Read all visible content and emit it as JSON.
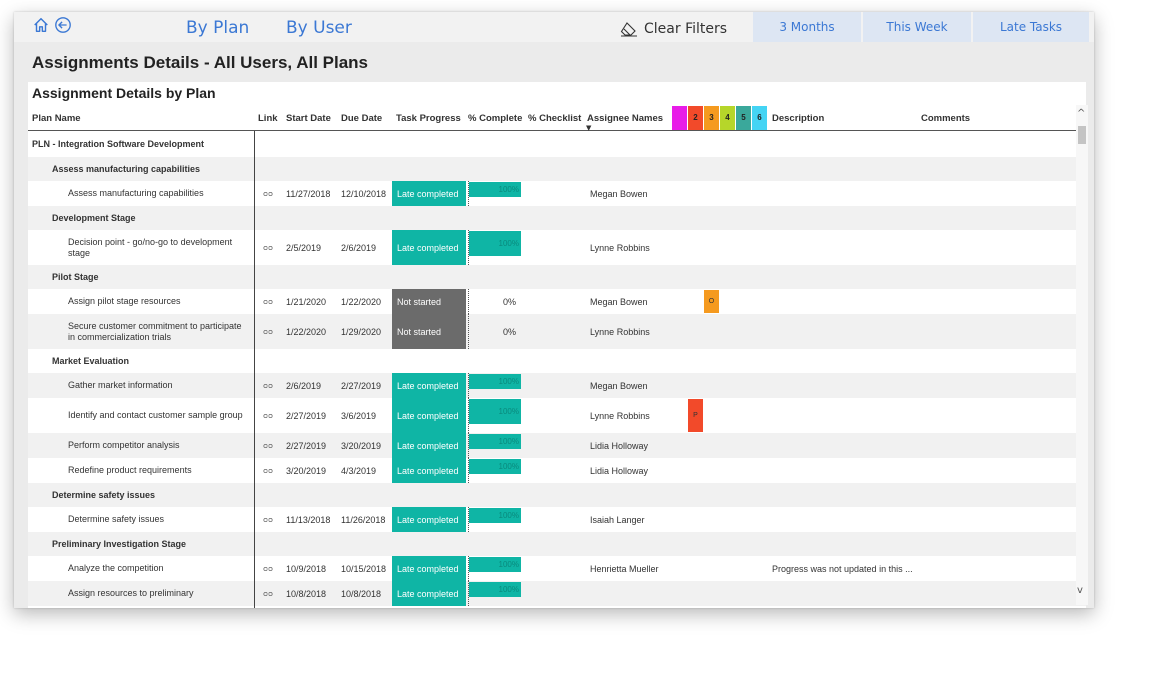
{
  "nav": {
    "by_plan": "By Plan",
    "by_user": "By User",
    "clear_filters": "Clear Filters",
    "segments": [
      "3 Months",
      "This Week",
      "Late Tasks"
    ]
  },
  "page_title": "Assignments Details - All Users, All Plans",
  "panel_title": "Assignment Details by Plan",
  "columns": {
    "plan_name": "Plan Name",
    "link": "Link",
    "start_date": "Start Date",
    "due_date": "Due Date",
    "task_progress": "Task Progress",
    "pct_complete": "% Complete",
    "pct_checklist": "% Checklist",
    "assignee_names": "Assignee Names",
    "description": "Description",
    "comments": "Comments"
  },
  "priority_labels": [
    "1",
    "2",
    "3",
    "4",
    "5",
    "6"
  ],
  "priority_colors": [
    "#e81ce8",
    "#f24a2a",
    "#f59a1f",
    "#b6d62a",
    "#3aa89b",
    "#44d4f4"
  ],
  "rows": [
    {
      "type": "plan",
      "name": "PLN - Integration Software Development"
    },
    {
      "type": "group",
      "name": "Assess manufacturing capabilities"
    },
    {
      "type": "task",
      "name": "Assess manufacturing capabilities",
      "start": "11/27/2018",
      "due": "12/10/2018",
      "progress": "Late completed",
      "pct": 100,
      "pct_label": "100%",
      "assignee": "Megan Bowen",
      "description": ""
    },
    {
      "type": "group",
      "name": "Development Stage"
    },
    {
      "type": "task",
      "name": "Decision point - go/no-go to development stage",
      "start": "2/5/2019",
      "due": "2/6/2019",
      "progress": "Late completed",
      "pct": 100,
      "pct_label": "100%",
      "assignee": "Lynne Robbins",
      "description": ""
    },
    {
      "type": "group",
      "name": "Pilot Stage"
    },
    {
      "type": "task",
      "name": "Assign pilot stage resources",
      "start": "1/21/2020",
      "due": "1/22/2020",
      "progress": "Not started",
      "pct": 0,
      "pct_label": "0%",
      "assignee": "Megan Bowen",
      "description": "",
      "flag": {
        "label": "O",
        "color": "#f59a1f",
        "col": 2
      }
    },
    {
      "type": "task",
      "name": "Secure customer commitment to participate in commercialization trials",
      "start": "1/22/2020",
      "due": "1/29/2020",
      "progress": "Not started",
      "pct": 0,
      "pct_label": "0%",
      "assignee": "Lynne Robbins",
      "description": ""
    },
    {
      "type": "group",
      "name": "Market Evaluation"
    },
    {
      "type": "task",
      "name": "Gather market information",
      "start": "2/6/2019",
      "due": "2/27/2019",
      "progress": "Late completed",
      "pct": 100,
      "pct_label": "100%",
      "assignee": "Megan Bowen",
      "description": ""
    },
    {
      "type": "task",
      "name": "Identify and contact customer sample group",
      "start": "2/27/2019",
      "due": "3/6/2019",
      "progress": "Late completed",
      "pct": 100,
      "pct_label": "100%",
      "assignee": "Lynne Robbins",
      "description": "",
      "flag": {
        "label": "P",
        "color": "#f24a2a",
        "col": 1
      }
    },
    {
      "type": "task",
      "name": "Perform competitor analysis",
      "start": "2/27/2019",
      "due": "3/20/2019",
      "progress": "Late completed",
      "pct": 100,
      "pct_label": "100%",
      "assignee": "Lidia Holloway",
      "description": ""
    },
    {
      "type": "task",
      "name": "Redefine product requirements",
      "start": "3/20/2019",
      "due": "4/3/2019",
      "progress": "Late completed",
      "pct": 100,
      "pct_label": "100%",
      "assignee": "Lidia Holloway",
      "description": ""
    },
    {
      "type": "group",
      "name": "Determine safety issues"
    },
    {
      "type": "task",
      "name": "Determine safety issues",
      "start": "11/13/2018",
      "due": "11/26/2018",
      "progress": "Late completed",
      "pct": 100,
      "pct_label": "100%",
      "assignee": "Isaiah Langer",
      "description": ""
    },
    {
      "type": "group",
      "name": "Preliminary Investigation Stage"
    },
    {
      "type": "task",
      "name": "Analyze the competition",
      "start": "10/9/2018",
      "due": "10/15/2018",
      "progress": "Late completed",
      "pct": 100,
      "pct_label": "100%",
      "assignee": "Henrietta Mueller",
      "description": "Progress was not updated in this ..."
    },
    {
      "type": "task",
      "name": "Assign resources to preliminary",
      "start": "10/8/2018",
      "due": "10/8/2018",
      "progress": "Late completed",
      "pct": 100,
      "pct_label": "100%",
      "assignee": "",
      "description": ""
    }
  ],
  "scroll": {
    "up": "^",
    "down": "v"
  }
}
